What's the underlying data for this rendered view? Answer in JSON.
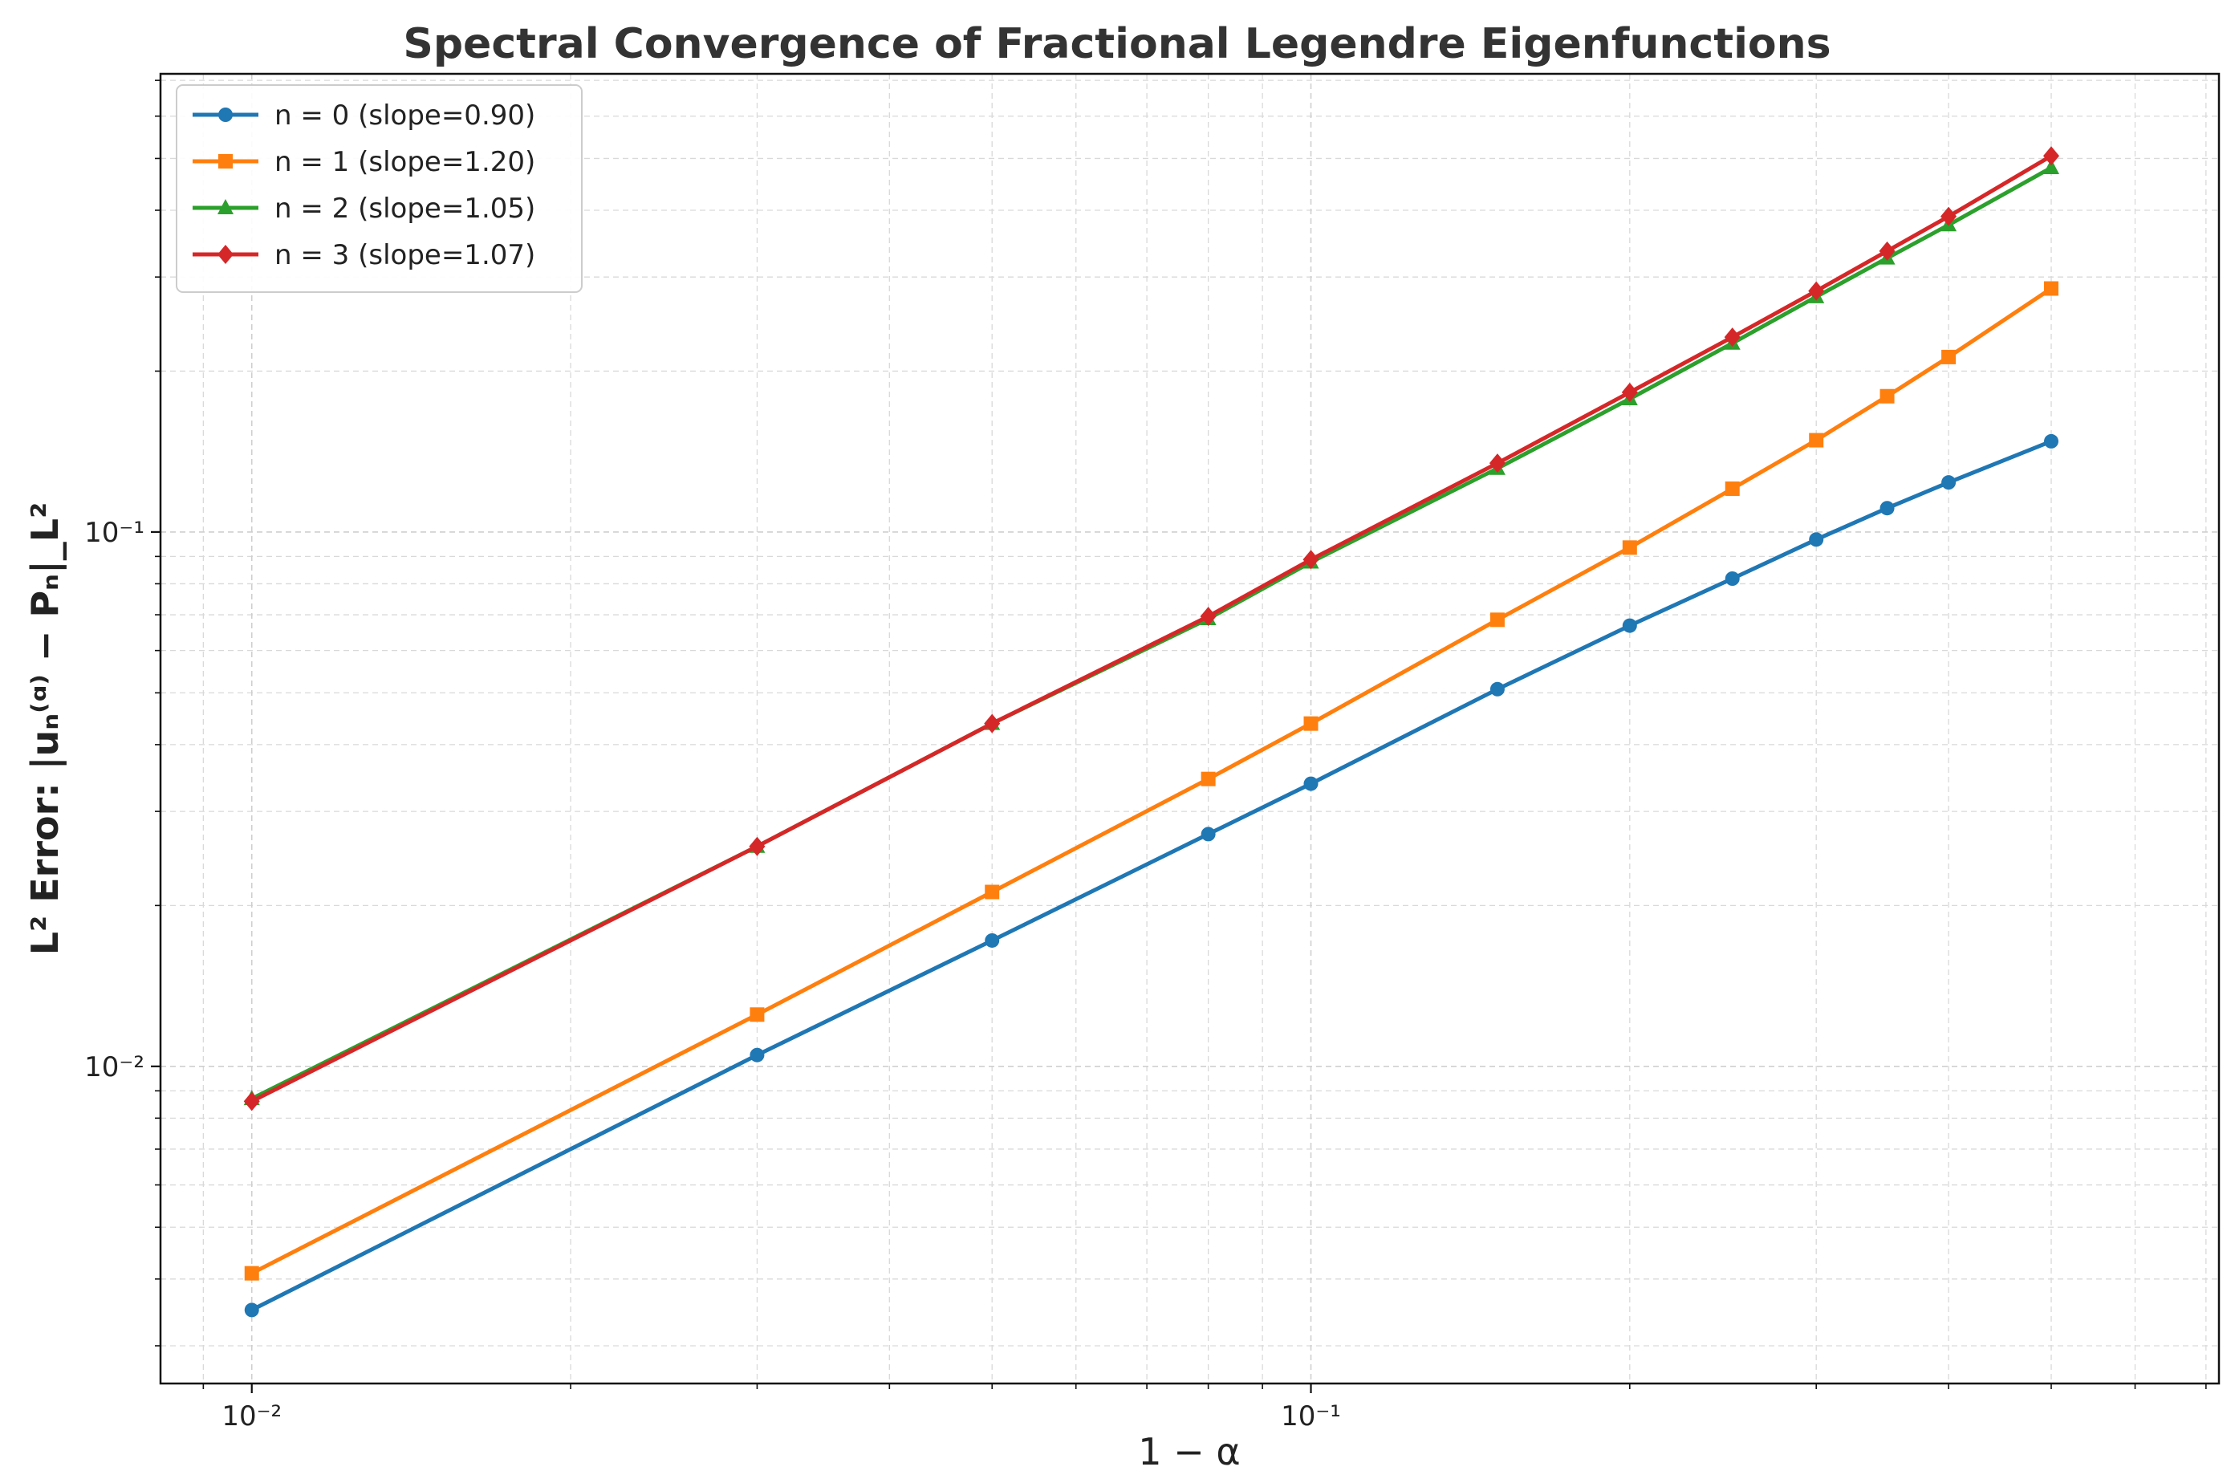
{
  "chart_data": {
    "type": "line",
    "title": "Spectral Convergence of Fractional Legendre Eigenfunctions",
    "xlabel": "1 − α",
    "ylabel": "L² Error: |uₙ⁽ᵅ⁾ − Pₙ|_L²",
    "xscale": "log",
    "yscale": "log",
    "xlim": [
      0.0082,
      0.72
    ],
    "ylim": [
      0.00255,
      0.72
    ],
    "x_tick_labels": [
      "10⁻²",
      "10⁻¹"
    ],
    "y_tick_labels": [
      "10⁻²",
      "10⁻¹"
    ],
    "grid": true,
    "legend_position": "top-left",
    "x": [
      0.01,
      0.03,
      0.05,
      0.08,
      0.1,
      0.15,
      0.2,
      0.25,
      0.3,
      0.35,
      0.4,
      0.5
    ],
    "series": [
      {
        "name": "n = 0 (slope=0.90)",
        "color": "#1f77b4",
        "marker": "circle",
        "values": [
          0.0035,
          0.0105,
          0.0172,
          0.0272,
          0.0338,
          0.0508,
          0.0668,
          0.0818,
          0.0968,
          0.1108,
          0.1238,
          0.1478
        ]
      },
      {
        "name": "n = 1 (slope=1.20)",
        "color": "#ff7f0e",
        "marker": "square",
        "values": [
          0.0041,
          0.0125,
          0.0212,
          0.0345,
          0.0438,
          0.0685,
          0.0935,
          0.1205,
          0.1485,
          0.1795,
          0.2125,
          0.2855
        ]
      },
      {
        "name": "n = 2 (slope=1.05)",
        "color": "#2ca02c",
        "marker": "triangle",
        "values": [
          0.0087,
          0.0258,
          0.0438,
          0.0688,
          0.0878,
          0.1315,
          0.1775,
          0.2255,
          0.2755,
          0.3255,
          0.3755,
          0.4805
        ]
      },
      {
        "name": "n = 3 (slope=1.07)",
        "color": "#d62728",
        "marker": "diamond",
        "values": [
          0.0086,
          0.0258,
          0.0438,
          0.0695,
          0.0888,
          0.1345,
          0.1825,
          0.2315,
          0.2825,
          0.3355,
          0.3895,
          0.5055
        ]
      }
    ]
  }
}
